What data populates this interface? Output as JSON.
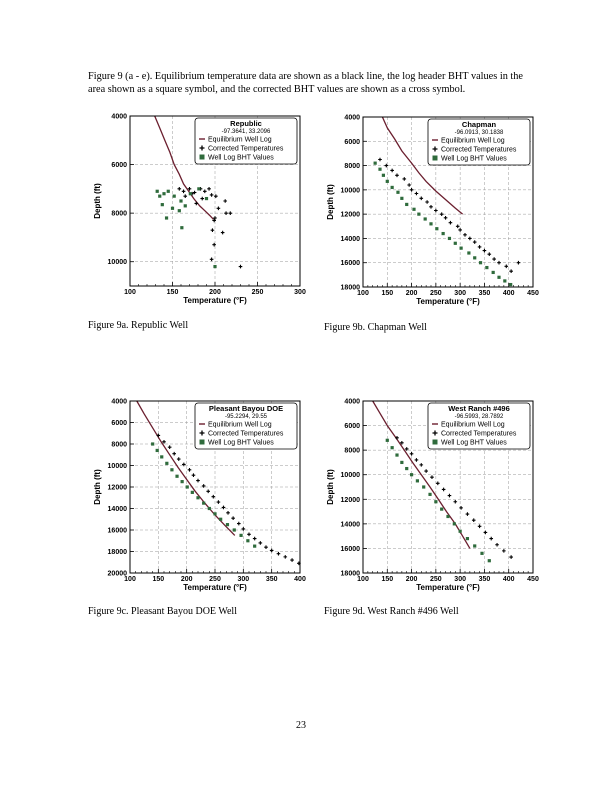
{
  "figure_caption": "Figure 9 (a - e).  Equilibrium temperature data are shown as a black line, the log header BHT values in the area shown as a square symbol, and the  corrected BHT values are shown as a cross symbol.",
  "page_number": "23",
  "colors": {
    "equilibrium": "#6b1f2f",
    "corrected": "#000000",
    "bht": "#2f6b3c"
  },
  "chart_data": [
    {
      "type": "scatter",
      "caption": "Figure 9a.  Republic Well",
      "title": "Republic",
      "coords": "-97.3641, 33.2096",
      "xlabel": "Temperature (°F)",
      "ylabel": "Depth (ft)",
      "xlim": [
        100,
        300
      ],
      "ylim": [
        4000,
        11000
      ],
      "y_inverted": true,
      "xticks": [
        "100",
        "150",
        "200",
        "250",
        "300"
      ],
      "yticks": [
        "4000",
        "6000",
        "8000",
        "10000"
      ],
      "legend": {
        "position": "top-right",
        "items": [
          "Equilibrium Well Log",
          "Corrected Temperatures",
          "Well Log BHT Values"
        ]
      },
      "series": [
        {
          "name": "Equilibrium Well Log",
          "kind": "line",
          "x": [
            129,
            135,
            141,
            147,
            152,
            158,
            163,
            169,
            175,
            182,
            188,
            194,
            198
          ],
          "y": [
            4000,
            4500,
            5000,
            5500,
            6000,
            6400,
            6800,
            7100,
            7400,
            7700,
            7900,
            8100,
            8250
          ]
        },
        {
          "name": "Corrected Temperatures",
          "kind": "cross",
          "x": [
            158,
            163,
            170,
            173,
            176,
            183,
            188,
            196,
            193,
            185,
            201,
            212,
            204,
            213,
            200,
            199,
            197,
            209,
            199,
            196,
            165,
            178,
            218,
            230
          ],
          "y": [
            7000,
            7100,
            7000,
            7200,
            7150,
            7000,
            7100,
            7250,
            7000,
            7400,
            7300,
            7500,
            7800,
            8000,
            8200,
            8300,
            8700,
            8800,
            9300,
            9900,
            7300,
            7600,
            8000,
            10200
          ]
        },
        {
          "name": "Well Log BHT Values",
          "kind": "square",
          "x": [
            132,
            135,
            140,
            145,
            152,
            138,
            160,
            165,
            150,
            171,
            181,
            158,
            190,
            143,
            161,
            200
          ],
          "y": [
            7100,
            7300,
            7200,
            7100,
            7300,
            7650,
            7500,
            7700,
            7800,
            7200,
            7000,
            7900,
            7400,
            8200,
            8600,
            10200
          ]
        }
      ]
    },
    {
      "type": "scatter",
      "caption": "Figure 9b.  Chapman Well",
      "title": "Chapman",
      "coords": "-96.0913, 30.1838",
      "xlabel": "Temperature (°F)",
      "ylabel": "Depth (ft)",
      "xlim": [
        100,
        450
      ],
      "ylim": [
        4000,
        18000
      ],
      "y_inverted": true,
      "xticks": [
        "100",
        "150",
        "200",
        "250",
        "300",
        "350",
        "400",
        "450"
      ],
      "yticks": [
        "4000",
        "6000",
        "8000",
        "10000",
        "12000",
        "14000",
        "16000",
        "18000"
      ],
      "legend": {
        "position": "top-right",
        "items": [
          "Equilibrium Well Log",
          "Corrected Temperatures",
          "Well Log BHT Values"
        ]
      },
      "series": [
        {
          "name": "Equilibrium Well Log",
          "kind": "line",
          "x": [
            140,
            150,
            165,
            180,
            200,
            215,
            230,
            250,
            270,
            290,
            305
          ],
          "y": [
            4000,
            4900,
            5800,
            6800,
            7800,
            8600,
            9300,
            10100,
            10800,
            11500,
            12000
          ]
        },
        {
          "name": "Corrected Temperatures",
          "kind": "cross",
          "x": [
            135,
            148,
            160,
            170,
            185,
            195,
            200,
            210,
            220,
            232,
            240,
            250,
            262,
            270,
            280,
            295,
            300,
            310,
            320,
            330,
            340,
            350,
            360,
            370,
            380,
            395,
            405,
            420
          ],
          "y": [
            7500,
            8000,
            8400,
            8800,
            9100,
            9600,
            10000,
            10300,
            10700,
            11000,
            11400,
            11700,
            12000,
            12300,
            12700,
            13000,
            13300,
            13700,
            14000,
            14300,
            14700,
            15000,
            15300,
            15700,
            16000,
            16300,
            16700,
            16000
          ]
        },
        {
          "name": "Well Log BHT Values",
          "kind": "square",
          "x": [
            125,
            135,
            142,
            150,
            160,
            172,
            180,
            190,
            205,
            215,
            228,
            240,
            252,
            265,
            278,
            290,
            302,
            318,
            330,
            342,
            355,
            368,
            380,
            392,
            404
          ],
          "y": [
            7800,
            8300,
            8800,
            9300,
            9800,
            10200,
            10700,
            11200,
            11600,
            12000,
            12400,
            12800,
            13200,
            13600,
            14000,
            14400,
            14800,
            15200,
            15600,
            16000,
            16400,
            16800,
            17200,
            17500,
            17800
          ]
        }
      ]
    },
    {
      "type": "scatter",
      "caption": "Figure 9c.  Pleasant Bayou DOE Well",
      "title": "Pleasant Bayou DOE",
      "coords": "-95.2294, 29.55",
      "xlabel": "Temperature (°F)",
      "ylabel": "Depth (ft)",
      "xlim": [
        100,
        400
      ],
      "ylim": [
        4000,
        20000
      ],
      "y_inverted": true,
      "xticks": [
        "100",
        "150",
        "200",
        "250",
        "300",
        "350",
        "400"
      ],
      "yticks": [
        "4000",
        "6000",
        "8000",
        "10000",
        "12000",
        "14000",
        "16000",
        "18000",
        "20000"
      ],
      "legend": {
        "position": "top-right",
        "items": [
          "Equilibrium Well Log",
          "Corrected Temperatures",
          "Well Log BHT Values"
        ]
      },
      "series": [
        {
          "name": "Equilibrium Well Log",
          "kind": "line",
          "x": [
            112,
            125,
            140,
            155,
            170,
            185,
            200,
            215,
            232,
            250,
            268,
            285
          ],
          "y": [
            4000,
            5200,
            6500,
            7800,
            9000,
            10200,
            11300,
            12400,
            13500,
            14600,
            15600,
            16500
          ]
        },
        {
          "name": "Corrected Temperatures",
          "kind": "cross",
          "x": [
            150,
            160,
            170,
            178,
            186,
            195,
            205,
            212,
            220,
            230,
            238,
            247,
            256,
            265,
            273,
            282,
            292,
            300,
            310,
            320,
            330,
            340,
            350,
            362,
            374,
            386,
            398
          ],
          "y": [
            7200,
            7800,
            8300,
            8900,
            9400,
            9900,
            10400,
            10900,
            11400,
            11900,
            12400,
            12900,
            13400,
            13900,
            14400,
            14900,
            15400,
            15900,
            16400,
            16800,
            17200,
            17600,
            17900,
            18200,
            18500,
            18800,
            19100
          ]
        },
        {
          "name": "Well Log BHT Values",
          "kind": "square",
          "x": [
            140,
            148,
            156,
            165,
            174,
            183,
            192,
            201,
            210,
            220,
            230,
            240,
            250,
            260,
            272,
            284,
            296,
            308,
            320
          ],
          "y": [
            8000,
            8600,
            9200,
            9800,
            10400,
            11000,
            11500,
            12000,
            12500,
            13000,
            13500,
            14000,
            14500,
            15000,
            15500,
            16000,
            16500,
            17000,
            17500
          ]
        }
      ]
    },
    {
      "type": "scatter",
      "caption": "Figure 9d.  West Ranch #496 Well",
      "title": "West Ranch #496",
      "coords": "-96.5993, 28.7892",
      "xlabel": "Temperature (°F)",
      "ylabel": "Depth (ft)",
      "xlim": [
        100,
        450
      ],
      "ylim": [
        4000,
        18000
      ],
      "y_inverted": true,
      "xticks": [
        "100",
        "150",
        "200",
        "250",
        "300",
        "350",
        "400",
        "450"
      ],
      "yticks": [
        "4000",
        "6000",
        "8000",
        "10000",
        "12000",
        "14000",
        "16000",
        "18000"
      ],
      "legend": {
        "position": "top-right",
        "items": [
          "Equilibrium Well Log",
          "Corrected Temperatures",
          "Well Log BHT Values"
        ]
      },
      "series": [
        {
          "name": "Equilibrium Well Log",
          "kind": "line",
          "x": [
            120,
            135,
            150,
            168,
            185,
            202,
            220,
            238,
            255,
            272,
            290,
            305,
            320
          ],
          "y": [
            4000,
            5000,
            6000,
            7000,
            8000,
            9000,
            10000,
            11000,
            12000,
            13000,
            14000,
            15000,
            16000
          ]
        },
        {
          "name": "Corrected Temperatures",
          "kind": "cross",
          "x": [
            170,
            180,
            190,
            200,
            210,
            220,
            230,
            242,
            254,
            266,
            278,
            290,
            302,
            315,
            328,
            340,
            352,
            364,
            376,
            390,
            405
          ],
          "y": [
            7000,
            7400,
            7900,
            8300,
            8800,
            9200,
            9700,
            10200,
            10700,
            11200,
            11700,
            12200,
            12700,
            13200,
            13700,
            14200,
            14700,
            15200,
            15700,
            16200,
            16700
          ]
        },
        {
          "name": "Well Log BHT Values",
          "kind": "square",
          "x": [
            150,
            160,
            170,
            180,
            190,
            200,
            212,
            225,
            238,
            250,
            262,
            275,
            288,
            300,
            315,
            330,
            345,
            360
          ],
          "y": [
            7200,
            7800,
            8400,
            9000,
            9500,
            10000,
            10500,
            11000,
            11600,
            12200,
            12800,
            13400,
            14000,
            14600,
            15200,
            15800,
            16400,
            17000
          ]
        }
      ]
    }
  ]
}
